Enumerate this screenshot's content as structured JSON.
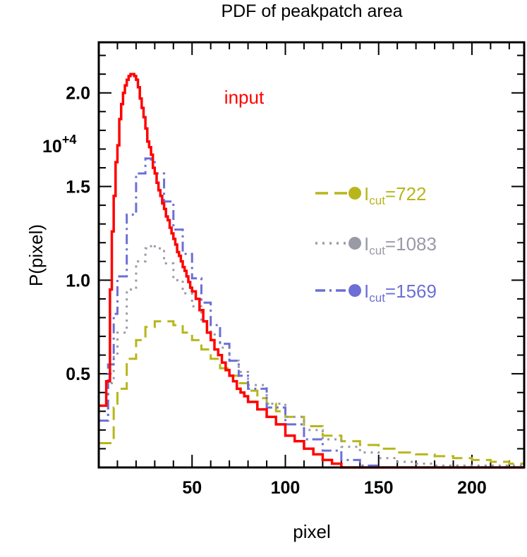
{
  "chart_data": {
    "type": "line",
    "title": "PDF of peakpatch  area",
    "xlabel": "pixel",
    "ylabel": "P(pixel)",
    "y_multiplier": {
      "base": "10",
      "exponent": "+4"
    },
    "xlim": [
      0,
      228
    ],
    "ylim": [
      0,
      2.27
    ],
    "x_ticks": [
      50,
      100,
      150,
      200
    ],
    "x_tick_labels": [
      "50",
      "100",
      "150",
      "200"
    ],
    "y_ticks": [
      0.5,
      1.0,
      1.5,
      2.0
    ],
    "y_tick_labels": [
      "0.5",
      "1.0",
      "1.5",
      "2.0"
    ],
    "annotation": {
      "text": "input",
      "color": "#ff0000"
    },
    "series": [
      {
        "name": "input",
        "color": "#ff0000",
        "dash": "solid",
        "x": [
          0,
          4,
          6,
          7,
          8,
          9,
          10,
          11,
          12,
          13,
          14,
          15,
          16,
          17,
          18,
          19,
          20,
          21,
          22,
          23,
          24,
          25,
          26,
          27,
          28,
          29,
          30,
          31,
          32,
          33,
          34,
          35,
          36,
          37,
          38,
          39,
          40,
          41,
          42,
          43,
          44,
          45,
          46,
          47,
          48,
          49,
          50,
          52,
          54,
          56,
          58,
          60,
          62,
          64,
          66,
          68,
          70,
          72,
          74,
          76,
          78,
          80,
          85,
          90,
          95,
          100,
          105,
          110,
          115,
          120,
          125,
          130,
          140,
          150,
          160,
          228
        ],
        "y": [
          0.33,
          0.46,
          0.95,
          1.26,
          1.45,
          1.63,
          1.72,
          1.86,
          1.94,
          2.0,
          2.04,
          2.07,
          2.09,
          2.1,
          2.1,
          2.09,
          2.07,
          2.03,
          1.97,
          1.92,
          1.87,
          1.81,
          1.74,
          1.71,
          1.67,
          1.6,
          1.57,
          1.52,
          1.48,
          1.45,
          1.41,
          1.38,
          1.34,
          1.32,
          1.28,
          1.25,
          1.22,
          1.19,
          1.15,
          1.13,
          1.1,
          1.07,
          1.05,
          1.02,
          0.99,
          0.96,
          0.94,
          0.9,
          0.84,
          0.78,
          0.72,
          0.68,
          0.63,
          0.6,
          0.56,
          0.52,
          0.49,
          0.46,
          0.42,
          0.4,
          0.38,
          0.35,
          0.31,
          0.27,
          0.23,
          0.17,
          0.14,
          0.1,
          0.07,
          0.04,
          0.02,
          0.0,
          0.0,
          0.0,
          0.0,
          0.0
        ]
      },
      {
        "name": "I_cut=722",
        "color": "#b7b61b",
        "dash": "dashed",
        "x": [
          0,
          8,
          10,
          15,
          20,
          25,
          30,
          35,
          40,
          45,
          50,
          55,
          60,
          65,
          70,
          75,
          80,
          85,
          90,
          95,
          100,
          110,
          120,
          130,
          140,
          150,
          160,
          170,
          180,
          190,
          200,
          210,
          220,
          228
        ],
        "y": [
          0.13,
          0.32,
          0.42,
          0.58,
          0.68,
          0.75,
          0.78,
          0.78,
          0.76,
          0.72,
          0.68,
          0.63,
          0.58,
          0.53,
          0.49,
          0.45,
          0.41,
          0.37,
          0.34,
          0.3,
          0.27,
          0.22,
          0.17,
          0.14,
          0.12,
          0.1,
          0.08,
          0.07,
          0.06,
          0.05,
          0.04,
          0.03,
          0.02,
          0.02
        ]
      },
      {
        "name": "I_cut=1083",
        "color": "#999aa6",
        "dash": "dotted",
        "x": [
          0,
          5,
          8,
          10,
          15,
          20,
          25,
          28,
          30,
          35,
          40,
          45,
          50,
          55,
          60,
          65,
          70,
          75,
          80,
          90,
          100,
          110,
          120,
          130,
          140,
          150,
          160,
          170,
          180
        ],
        "y": [
          0.25,
          0.45,
          0.6,
          0.72,
          0.95,
          1.1,
          1.17,
          1.19,
          1.17,
          1.09,
          1.0,
          0.93,
          0.86,
          0.78,
          0.71,
          0.64,
          0.57,
          0.51,
          0.44,
          0.34,
          0.27,
          0.2,
          0.15,
          0.11,
          0.08,
          0.05,
          0.03,
          0.02,
          0.01
        ]
      },
      {
        "name": "I_cut=1569",
        "color": "#6d6fd5",
        "dash": "dashdot",
        "x": [
          0,
          5,
          8,
          10,
          15,
          20,
          25,
          28,
          30,
          35,
          40,
          45,
          50,
          55,
          60,
          65,
          70,
          75,
          80,
          90,
          100,
          110,
          120,
          130,
          140,
          150
        ],
        "y": [
          0.25,
          0.55,
          0.82,
          1.02,
          1.35,
          1.57,
          1.65,
          1.63,
          1.57,
          1.42,
          1.27,
          1.14,
          1.01,
          0.88,
          0.76,
          0.66,
          0.57,
          0.49,
          0.42,
          0.32,
          0.23,
          0.15,
          0.09,
          0.04,
          0.01,
          0.0
        ]
      }
    ],
    "legend": [
      {
        "base": "I",
        "sub": "cut",
        "value": "=722",
        "color": "#b7b61b",
        "dash": "dashed"
      },
      {
        "base": "I",
        "sub": "cut",
        "value": "=1083",
        "color": "#999aa6",
        "dash": "dotted"
      },
      {
        "base": "I",
        "sub": "cut",
        "value": "=1569",
        "color": "#6d6fd5",
        "dash": "dashdot"
      }
    ],
    "legend_position": "right",
    "grid": false
  }
}
